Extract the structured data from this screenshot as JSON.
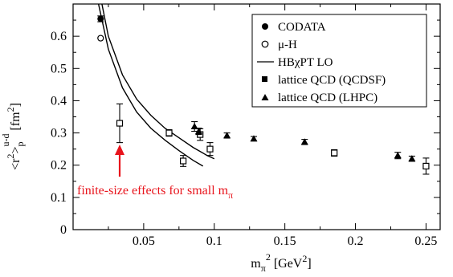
{
  "chart_data": {
    "type": "scatter",
    "xlabel": "m_π^2 [GeV^2]",
    "ylabel": "<r^2>_p^(u-d) [fm^2]",
    "xlim": [
      0,
      0.26
    ],
    "ylim": [
      0,
      0.7
    ],
    "x_ticks": [
      {
        "value": 0.05,
        "label": "0.05"
      },
      {
        "value": 0.1,
        "label": "0.1"
      },
      {
        "value": 0.15,
        "label": "0.15"
      },
      {
        "value": 0.2,
        "label": "0.2"
      },
      {
        "value": 0.25,
        "label": "0.25"
      }
    ],
    "y_ticks": [
      {
        "value": 0,
        "label": "0"
      },
      {
        "value": 0.1,
        "label": "0.1"
      },
      {
        "value": 0.2,
        "label": "0.2"
      },
      {
        "value": 0.3,
        "label": "0.3"
      },
      {
        "value": 0.4,
        "label": "0.4"
      },
      {
        "value": 0.5,
        "label": "0.5"
      },
      {
        "value": 0.6,
        "label": "0.6"
      }
    ],
    "legend_position": "top-right",
    "series": [
      {
        "name": "CODATA",
        "marker": "filled-circle",
        "points": [
          {
            "x": 0.0195,
            "y": 0.654,
            "err": 0.009
          }
        ]
      },
      {
        "name": "μ-H",
        "marker": "open-circle",
        "points": [
          {
            "x": 0.0195,
            "y": 0.594,
            "err": 0
          }
        ]
      },
      {
        "name": "HBχPT LO",
        "marker": "line",
        "curves": [
          {
            "points": [
              [
                0.017,
                0.72
              ],
              [
                0.025,
                0.56
              ],
              [
                0.035,
                0.44
              ],
              [
                0.045,
                0.365
              ],
              [
                0.055,
                0.315
              ],
              [
                0.065,
                0.278
              ],
              [
                0.075,
                0.245
              ],
              [
                0.085,
                0.215
              ],
              [
                0.092,
                0.197
              ]
            ]
          },
          {
            "points": [
              [
                0.0195,
                0.72
              ],
              [
                0.025,
                0.6
              ],
              [
                0.035,
                0.48
              ],
              [
                0.045,
                0.405
              ],
              [
                0.055,
                0.355
              ],
              [
                0.065,
                0.315
              ],
              [
                0.075,
                0.285
              ],
              [
                0.085,
                0.255
              ],
              [
                0.095,
                0.23
              ],
              [
                0.1,
                0.22
              ]
            ]
          }
        ]
      },
      {
        "name": "lattice QCD (QCDSF)",
        "marker": "open-square",
        "points": [
          {
            "x": 0.033,
            "y": 0.33,
            "err": 0.06
          },
          {
            "x": 0.068,
            "y": 0.3,
            "err": 0.01
          },
          {
            "x": 0.078,
            "y": 0.213,
            "err": 0.017
          },
          {
            "x": 0.09,
            "y": 0.295,
            "err": 0.018
          },
          {
            "x": 0.097,
            "y": 0.25,
            "err": 0.02
          },
          {
            "x": 0.185,
            "y": 0.238,
            "err": 0.01
          },
          {
            "x": 0.25,
            "y": 0.197,
            "err": 0.025
          }
        ]
      },
      {
        "name": "lattice QCD (LHPC)",
        "marker": "filled-triangle",
        "points": [
          {
            "x": 0.086,
            "y": 0.32,
            "err": 0.015
          },
          {
            "x": 0.089,
            "y": 0.305,
            "err": 0.01
          },
          {
            "x": 0.109,
            "y": 0.292,
            "err": 0.008
          },
          {
            "x": 0.128,
            "y": 0.282,
            "err": 0.007
          },
          {
            "x": 0.164,
            "y": 0.272,
            "err": 0.008
          },
          {
            "x": 0.23,
            "y": 0.23,
            "err": 0.01
          },
          {
            "x": 0.24,
            "y": 0.22,
            "err": 0.008
          }
        ]
      }
    ],
    "annotations": [
      {
        "text": "finite-size effects for small m_π",
        "color": "#e8141c",
        "arrow_to": {
          "x": 0.033,
          "y": 0.075
        },
        "arrow_from": {
          "x": 0.033,
          "y": 0.015
        }
      }
    ]
  }
}
